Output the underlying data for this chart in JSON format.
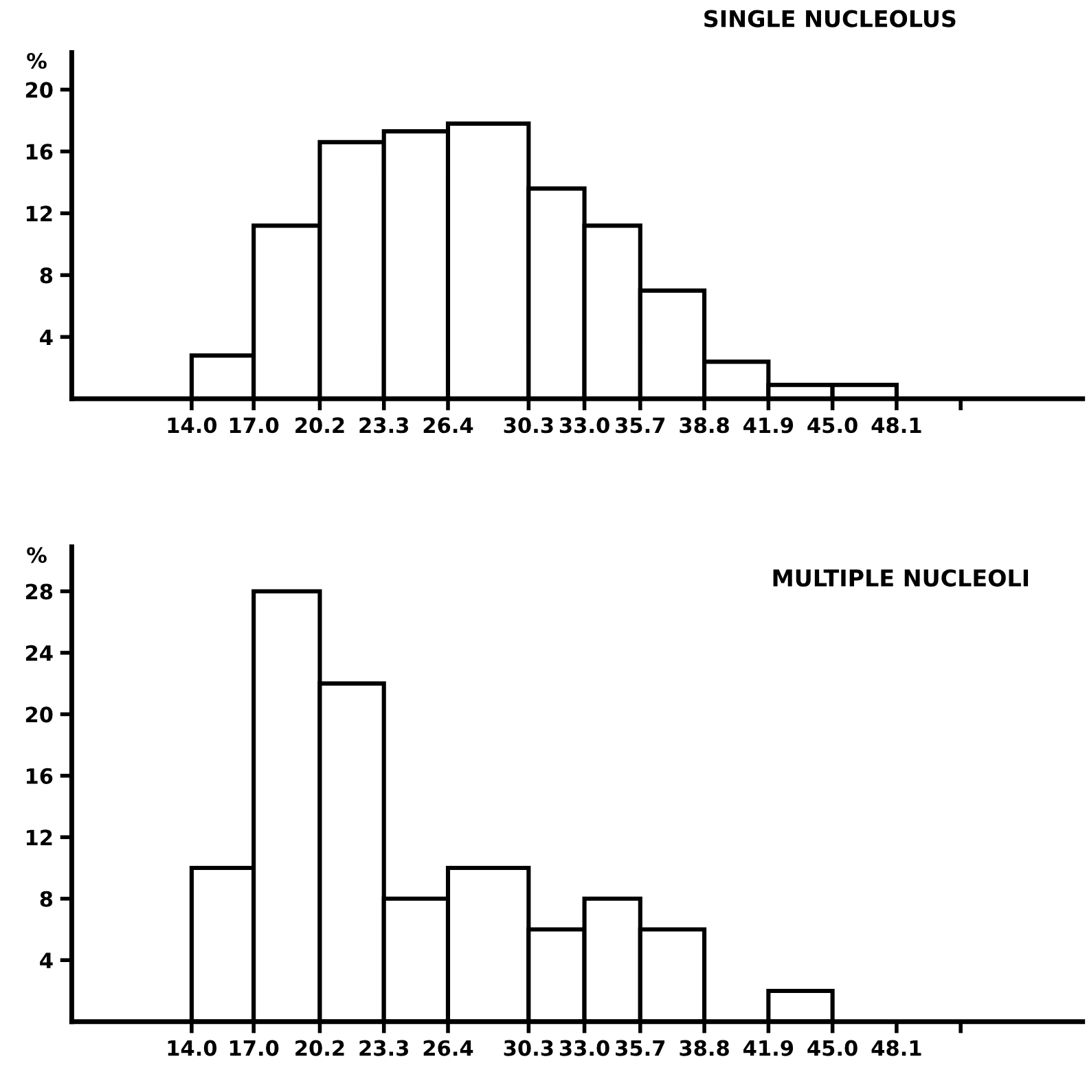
{
  "chart_data": [
    {
      "type": "histogram",
      "title": "SINGLE NUCLEOLUS",
      "ylabel": "%",
      "bins": [
        14.0,
        17.0,
        20.2,
        23.3,
        26.4,
        30.3,
        33.0,
        35.7,
        38.8,
        41.9,
        45.0,
        48.1
      ],
      "values": [
        2.8,
        11.2,
        16.6,
        17.3,
        17.8,
        13.6,
        11.2,
        7.0,
        2.4,
        0.9,
        0.9
      ],
      "color": "#ffffff",
      "xlim": [
        8.2,
        57.1
      ],
      "ylim": [
        0,
        22.4
      ],
      "xticks": [
        {
          "value": 14.0,
          "label": "14.0"
        },
        {
          "value": 17.0,
          "label": "17.0"
        },
        {
          "value": 20.2,
          "label": "20.2"
        },
        {
          "value": 23.3,
          "label": "23.3"
        },
        {
          "value": 26.4,
          "label": "26.4"
        },
        {
          "value": 30.3,
          "label": "30.3"
        },
        {
          "value": 33.0,
          "label": "33.0"
        },
        {
          "value": 35.7,
          "label": "35.7"
        },
        {
          "value": 38.8,
          "label": "38.8"
        },
        {
          "value": 41.9,
          "label": "41.9"
        },
        {
          "value": 45.0,
          "label": "45.0"
        },
        {
          "value": 48.1,
          "label": "48.1"
        },
        {
          "value": 51.2,
          "label": null
        }
      ],
      "yticks": [
        {
          "value": 4,
          "label": "4"
        },
        {
          "value": 8,
          "label": "8"
        },
        {
          "value": 12,
          "label": "12"
        },
        {
          "value": 16,
          "label": "16"
        },
        {
          "value": 20,
          "label": "20"
        }
      ],
      "grid": false
    },
    {
      "type": "histogram",
      "title": "MULTIPLE NUCLEOLI",
      "ylabel": "%",
      "bins": [
        14.0,
        17.0,
        20.2,
        23.3,
        26.4,
        30.3,
        33.0,
        35.7,
        38.8,
        41.9,
        45.0
      ],
      "values": [
        10,
        28,
        22,
        8,
        10,
        6,
        8,
        6,
        0,
        2
      ],
      "color": "#ffffff",
      "xlim": [
        8.2,
        57.1
      ],
      "ylim": [
        0,
        30.9
      ],
      "xticks": [
        {
          "value": 14.0,
          "label": "14.0"
        },
        {
          "value": 17.0,
          "label": "17.0"
        },
        {
          "value": 20.2,
          "label": "20.2"
        },
        {
          "value": 23.3,
          "label": "23.3"
        },
        {
          "value": 26.4,
          "label": "26.4"
        },
        {
          "value": 30.3,
          "label": "30.3"
        },
        {
          "value": 33.0,
          "label": "33.0"
        },
        {
          "value": 35.7,
          "label": "35.7"
        },
        {
          "value": 38.8,
          "label": "38.8"
        },
        {
          "value": 41.9,
          "label": "41.9"
        },
        {
          "value": 45.0,
          "label": "45.0"
        },
        {
          "value": 48.1,
          "label": "48.1"
        },
        {
          "value": 51.2,
          "label": null
        }
      ],
      "yticks": [
        {
          "value": 4,
          "label": "4"
        },
        {
          "value": 8,
          "label": "8"
        },
        {
          "value": 12,
          "label": "12"
        },
        {
          "value": 16,
          "label": "16"
        },
        {
          "value": 20,
          "label": "20"
        },
        {
          "value": 24,
          "label": "24"
        },
        {
          "value": 28,
          "label": "28"
        }
      ],
      "grid": false
    }
  ]
}
